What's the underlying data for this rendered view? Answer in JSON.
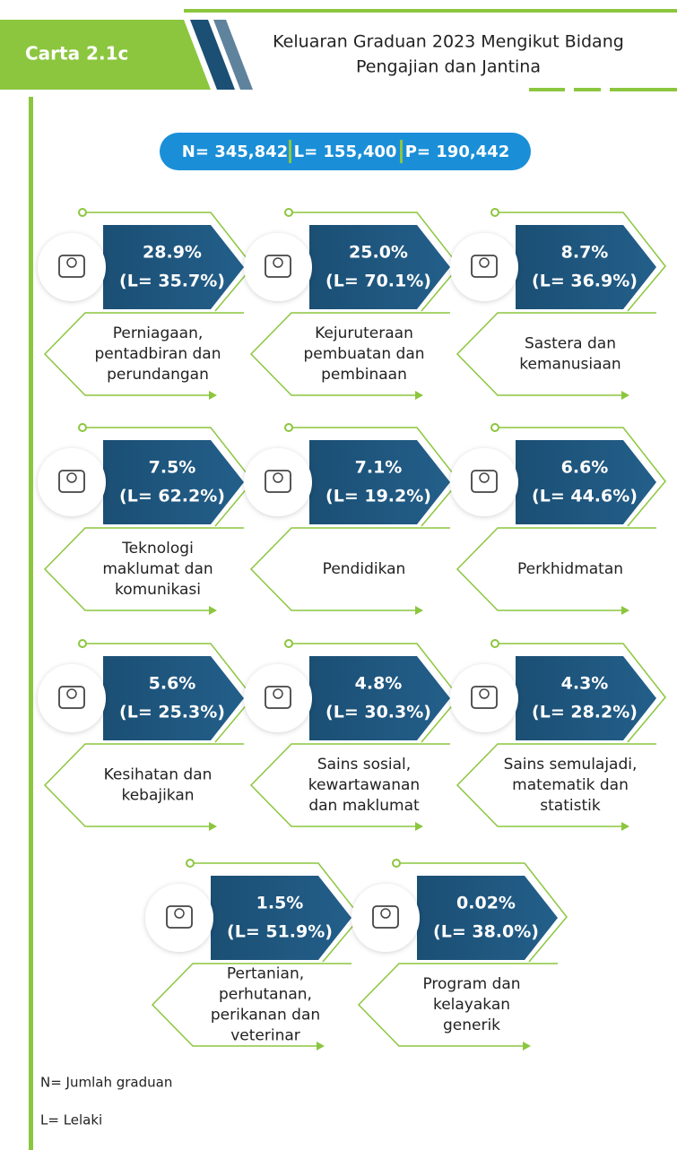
{
  "header": {
    "tag": "Carta 2.1c",
    "title": [
      "Keluaran Graduan 2023 Mengikut Bidang",
      "Pengajian dan Jantina"
    ]
  },
  "summary": [
    "N= 345,842",
    "L= 155,400",
    "P= 190,442"
  ],
  "items": [
    {
      "value": "28.9%",
      "male": "(L= 35.7%)",
      "label": [
        "Perniagaan,",
        "pentadbiran dan",
        "perundangan"
      ]
    },
    {
      "value": "25.0%",
      "male": "(L= 70.1%)",
      "label": [
        "Kejuruteraan",
        "pembuatan dan",
        "pembinaan"
      ]
    },
    {
      "value": "8.7%",
      "male": "(L= 36.9%)",
      "label": [
        "Sastera dan",
        "kemanusiaan"
      ]
    },
    {
      "value": "7.5%",
      "male": "(L= 62.2%)",
      "label": [
        "Teknologi",
        "maklumat dan",
        "komunikasi"
      ]
    },
    {
      "value": "7.1%",
      "male": "(L= 19.2%)",
      "label": [
        "Pendidikan"
      ]
    },
    {
      "value": "6.6%",
      "male": "(L= 44.6%)",
      "label": [
        "Perkhidmatan"
      ]
    },
    {
      "value": "5.6%",
      "male": "(L= 25.3%)",
      "label": [
        "Kesihatan dan",
        "kebajikan"
      ]
    },
    {
      "value": "4.8%",
      "male": "(L= 30.3%)",
      "label": [
        "Sains sosial,",
        "kewartawanan",
        "dan maklumat"
      ]
    },
    {
      "value": "4.3%",
      "male": "(L= 28.2%)",
      "label": [
        "Sains semulajadi,",
        "matematik dan",
        "statistik"
      ]
    },
    {
      "value": "1.5%",
      "male": "(L= 51.9%)",
      "label": [
        "Pertanian,",
        "perhutanan,",
        "perikanan dan",
        "veterinar"
      ]
    },
    {
      "value": "0.02%",
      "male": "(L= 38.0%)",
      "label": [
        "Program dan",
        "kelayakan",
        "generik"
      ]
    }
  ],
  "notes": [
    "N= Jumlah graduan",
    "L= Lelaki"
  ]
}
